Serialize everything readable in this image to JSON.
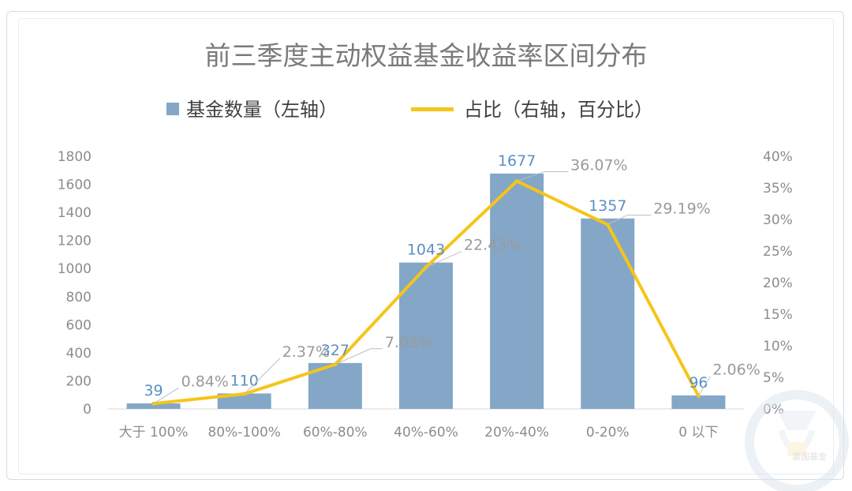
{
  "chart_data": {
    "type": "bar",
    "title": "前三季度主动权益基金收益率区间分布",
    "categories": [
      "大于 100%",
      "80%-100%",
      "60%-80%",
      "40%-60%",
      "20%-40%",
      "0-20%",
      "0 以下"
    ],
    "series": [
      {
        "name": "基金数量（左轴）",
        "type": "bar",
        "axis": "left",
        "values": [
          39,
          110,
          327,
          1043,
          1677,
          1357,
          96
        ],
        "labels": [
          "39",
          "110",
          "327",
          "1043",
          "1677",
          "1357",
          "96"
        ]
      },
      {
        "name": "占比（右轴，百分比）",
        "type": "line",
        "axis": "right",
        "values": [
          0.84,
          2.37,
          7.03,
          22.43,
          36.07,
          29.19,
          2.06
        ],
        "labels": [
          "0.84%",
          "2.37%",
          "7.03%",
          "22.43%",
          "36.07%",
          "29.19%",
          "2.06%"
        ]
      }
    ],
    "y_left": {
      "ylim": [
        0,
        1800
      ],
      "ticks": [
        0,
        200,
        400,
        600,
        800,
        1000,
        1200,
        1400,
        1600,
        1800
      ],
      "tick_labels": [
        "0",
        "200",
        "400",
        "600",
        "800",
        "1000",
        "1200",
        "1400",
        "1600",
        "1800"
      ]
    },
    "y_right": {
      "ylim": [
        0,
        40
      ],
      "ticks": [
        0,
        5,
        10,
        15,
        20,
        25,
        30,
        35,
        40
      ],
      "tick_labels": [
        "0%",
        "5%",
        "10%",
        "15%",
        "20%",
        "25%",
        "30%",
        "35%",
        "40%"
      ]
    },
    "grid": false,
    "legend_position": "top-center",
    "colors": {
      "bar": "#84a7c8",
      "line": "#f5c518",
      "bar_label": "#5b8fc4",
      "pct_label": "#9a9a9a",
      "axis_text": "#8c8c8c",
      "title": "#7a7a7a"
    }
  },
  "watermark": {
    "text": "富国基金",
    "icon": "fund-logo-icon"
  }
}
